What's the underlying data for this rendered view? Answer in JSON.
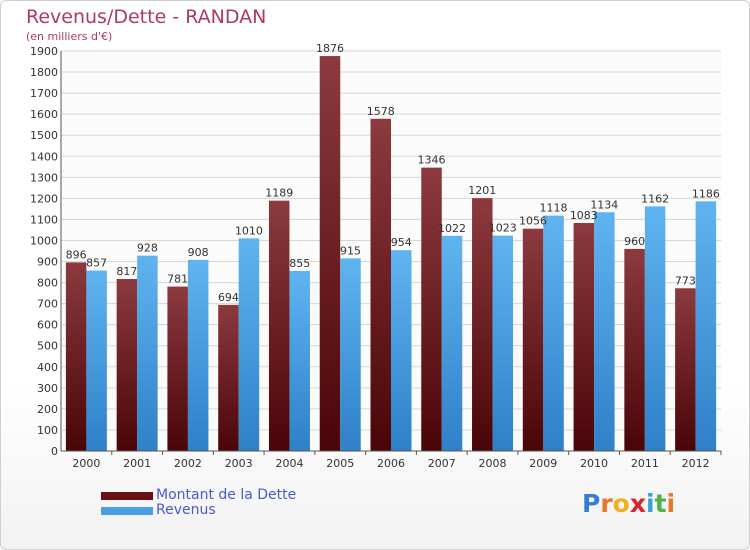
{
  "header": {
    "title": "Revenus/Dette - RANDAN",
    "subtitle": "(en milliers d'€)"
  },
  "legend": {
    "items": [
      {
        "label": "Montant de la Dette",
        "color": "#6b0f14"
      },
      {
        "label": "Revenus",
        "color": "#4a9fe0"
      }
    ]
  },
  "logo": {
    "text": "Proxiti",
    "colors": [
      "#3a7bd5",
      "#e8762c",
      "#f2b01e",
      "#d8262e",
      "#3aa0d8",
      "#52b04a",
      "#e8762c"
    ]
  },
  "chart_data": {
    "type": "bar",
    "title": "Revenus/Dette - RANDAN",
    "subtitle": "(en milliers d'€)",
    "categories": [
      "2000",
      "2001",
      "2002",
      "2003",
      "2004",
      "2005",
      "2006",
      "2007",
      "2008",
      "2009",
      "2010",
      "2011",
      "2012"
    ],
    "series": [
      {
        "name": "Montant de la Dette",
        "color": "#6b0f14",
        "values": [
          896,
          817,
          781,
          694,
          1189,
          1876,
          1578,
          1346,
          1201,
          1056,
          1083,
          960,
          773
        ]
      },
      {
        "name": "Revenus",
        "color": "#4a9fe0",
        "values": [
          857,
          928,
          908,
          1010,
          855,
          915,
          954,
          1022,
          1023,
          1118,
          1134,
          1162,
          1186
        ]
      }
    ],
    "data_labels": {
      "dette": [
        "896",
        "817",
        "781",
        "694",
        "1189",
        "1876",
        "1578",
        "1346",
        "1201",
        "1056",
        "1083",
        "960",
        "773"
      ],
      "revenus": [
        "857",
        "928",
        "908",
        "1010",
        "855",
        "915",
        "954",
        "1022",
        "1023",
        "1118",
        "1134",
        "1162",
        "1186"
      ]
    },
    "ylim": [
      0,
      1900
    ],
    "yticks": [
      "0",
      "100",
      "200",
      "300",
      "400",
      "500",
      "600",
      "700",
      "800",
      "900",
      "1000",
      "1100",
      "1200",
      "1300",
      "1400",
      "1500",
      "1600",
      "1700",
      "1800",
      "1900"
    ],
    "grid": true,
    "legend_position": "bottom-left"
  }
}
